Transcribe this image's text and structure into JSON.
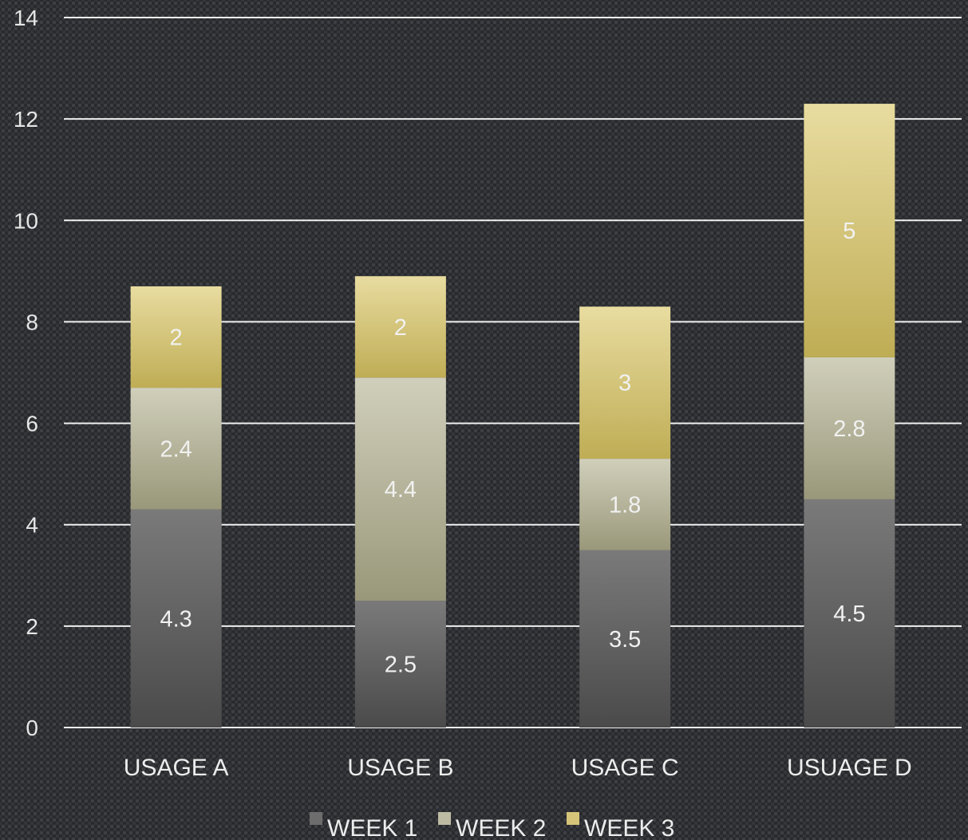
{
  "chart_data": {
    "type": "bar",
    "stacked": true,
    "categories": [
      "USAGE A",
      "USAGE B",
      "USAGE C",
      "USUAGE D"
    ],
    "series": [
      {
        "name": "WEEK 1",
        "values": [
          4.3,
          2.5,
          3.5,
          4.5
        ],
        "color_top": "#7a7a7a",
        "color_bottom": "#4a4a4a",
        "swatch": "#6d6d6d"
      },
      {
        "name": "WEEK 2",
        "values": [
          2.4,
          4.4,
          1.8,
          2.8
        ],
        "color_top": "#d0cfbb",
        "color_bottom": "#9a987a",
        "swatch": "#bdbca3"
      },
      {
        "name": "WEEK 3",
        "values": [
          2,
          2,
          3,
          5
        ],
        "color_top": "#e8dca0",
        "color_bottom": "#bfad55",
        "swatch": "#d6c578"
      }
    ],
    "ylim": [
      0,
      14
    ],
    "yticks": [
      0,
      2,
      4,
      6,
      8,
      10,
      12,
      14
    ],
    "grid": true,
    "legend": "bottom",
    "title": "",
    "xlabel": "",
    "ylabel": ""
  }
}
